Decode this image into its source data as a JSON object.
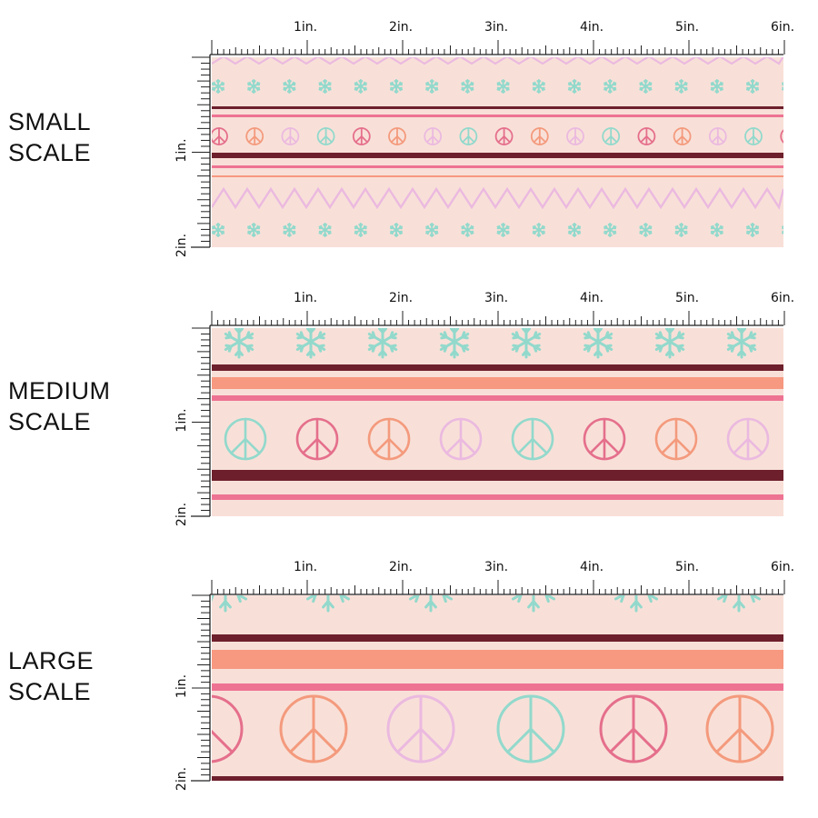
{
  "sections": [
    {
      "id": "small",
      "label_line1": "SMALL",
      "label_line2": "SCALE"
    },
    {
      "id": "medium",
      "label_line1": "MEDIUM",
      "label_line2": "SCALE"
    },
    {
      "id": "large",
      "label_line1": "LARGE",
      "label_line2": "SCALE"
    }
  ],
  "ruler": {
    "h_labels": [
      "1in.",
      "2in.",
      "3in.",
      "4in.",
      "5in.",
      "6in."
    ],
    "v_labels": [
      "1in.",
      "2in."
    ]
  },
  "colors": {
    "background": "#f8e0d8",
    "maroon": "#6e1f2c",
    "salmon": "#f79880",
    "pink": "#ee7393",
    "mint": "#92d9cc",
    "lavender": "#ebb9e0",
    "coral": "#f49a7d",
    "rose": "#e56f8c"
  }
}
